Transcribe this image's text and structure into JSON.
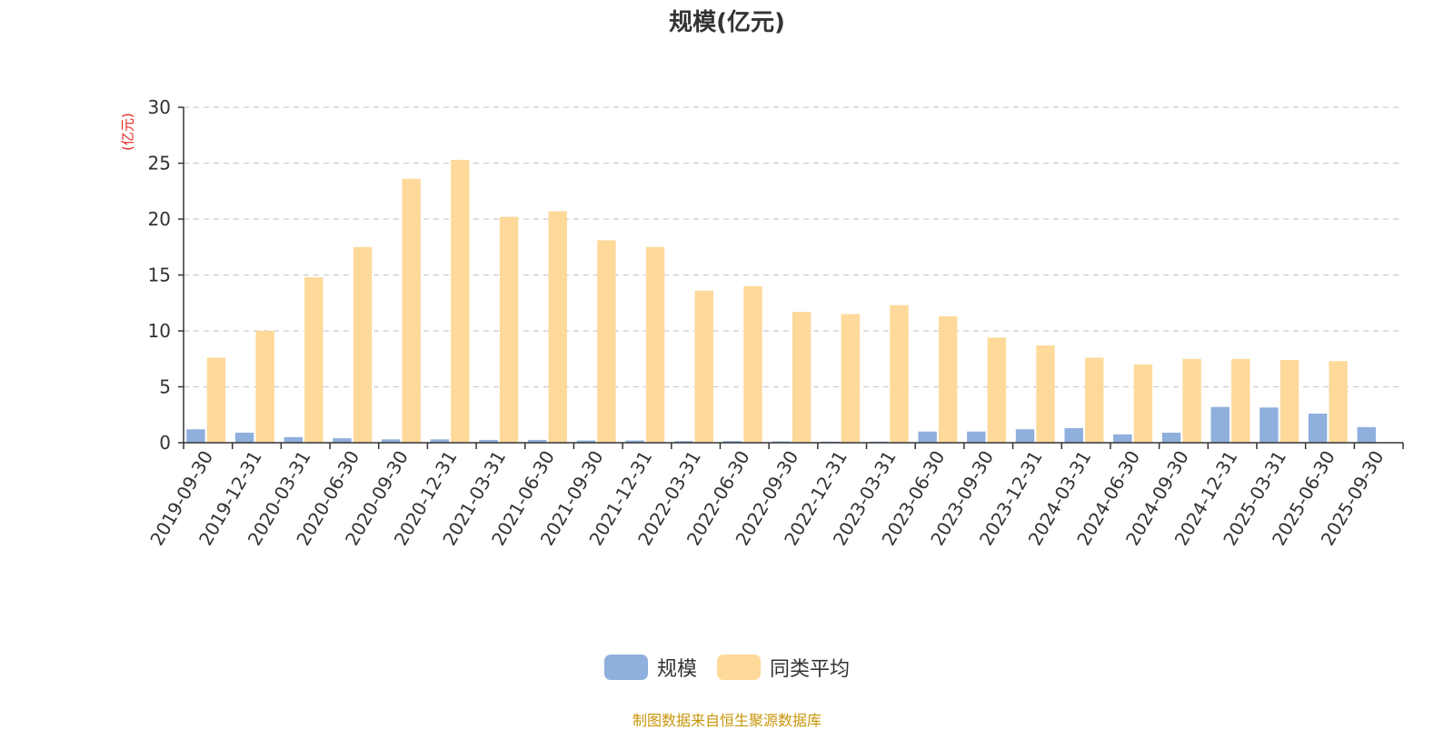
{
  "title": "规模(亿元)",
  "unit_label": "(亿元)",
  "source_note": "制图数据来自恒生聚源数据库",
  "colors": {
    "scale": "#8fafdc",
    "avg": "#fed99a",
    "axis": "#333333",
    "grid": "#cccccc",
    "unit": "#e8261f",
    "source": "#c8960a"
  },
  "chart_data": {
    "type": "bar",
    "title": "规模(亿元)",
    "ylabel": "(亿元)",
    "ylim": [
      0,
      30
    ],
    "yticks": [
      0,
      5,
      10,
      15,
      20,
      25,
      30
    ],
    "grid": true,
    "legend_position": "bottom",
    "categories": [
      "2019-09-30",
      "2019-12-31",
      "2020-03-31",
      "2020-06-30",
      "2020-09-30",
      "2020-12-31",
      "2021-03-31",
      "2021-06-30",
      "2021-09-30",
      "2021-12-31",
      "2022-03-31",
      "2022-06-30",
      "2022-09-30",
      "2022-12-31",
      "2023-03-31",
      "2023-06-30",
      "2023-09-30",
      "2023-12-31",
      "2024-03-31",
      "2024-06-30",
      "2024-09-30",
      "2024-12-31",
      "2025-03-31",
      "2025-06-30",
      "2025-09-30"
    ],
    "series": [
      {
        "name": "规模",
        "values": [
          1.2,
          0.9,
          0.5,
          0.4,
          0.3,
          0.3,
          0.25,
          0.25,
          0.2,
          0.2,
          0.15,
          0.15,
          0.12,
          0.1,
          0.1,
          1.0,
          1.0,
          1.2,
          1.3,
          0.75,
          0.9,
          3.2,
          3.15,
          2.6,
          1.4
        ]
      },
      {
        "name": "同类平均",
        "values": [
          7.6,
          10.0,
          14.8,
          17.5,
          23.6,
          25.3,
          20.2,
          20.7,
          18.1,
          17.5,
          13.6,
          14.0,
          11.7,
          11.5,
          12.3,
          11.3,
          9.4,
          8.7,
          7.6,
          7.0,
          7.5,
          7.5,
          7.4,
          7.3,
          null
        ]
      }
    ]
  }
}
